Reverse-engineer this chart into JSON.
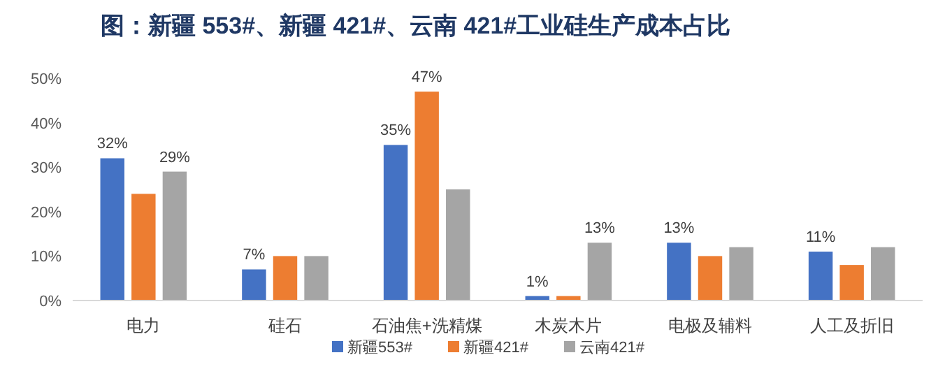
{
  "chart_data": {
    "type": "bar",
    "title": "图：新疆 553#、新疆 421#、云南 421#工业硅生产成本占比",
    "categories": [
      "电力",
      "硅石",
      "石油焦+洗精煤",
      "木炭木片",
      "电极及辅料",
      "人工及折旧"
    ],
    "series": [
      {
        "name": "新疆553#",
        "color": "#4472c4",
        "values": [
          32,
          7,
          35,
          1,
          13,
          11
        ],
        "value_labels": [
          "32%",
          "7%",
          "35%",
          "1%",
          "13%",
          "11%"
        ]
      },
      {
        "name": "新疆421#",
        "color": "#ed7d31",
        "values": [
          24,
          10,
          47,
          1,
          10,
          8
        ],
        "value_labels": [
          null,
          null,
          "47%",
          null,
          null,
          null
        ]
      },
      {
        "name": "云南421#",
        "color": "#a5a5a5",
        "values": [
          29,
          10,
          25,
          13,
          12,
          12
        ],
        "value_labels": [
          "29%",
          null,
          null,
          "13%",
          null,
          null
        ]
      }
    ],
    "ylim": [
      0,
      50
    ],
    "yticks": [
      {
        "value": 0,
        "label": "0%"
      },
      {
        "value": 10,
        "label": "10%"
      },
      {
        "value": 20,
        "label": "20%"
      },
      {
        "value": 30,
        "label": "30%"
      },
      {
        "value": 40,
        "label": "40%"
      },
      {
        "value": 50,
        "label": "50%"
      }
    ],
    "grid": false,
    "legend": "bottom"
  }
}
